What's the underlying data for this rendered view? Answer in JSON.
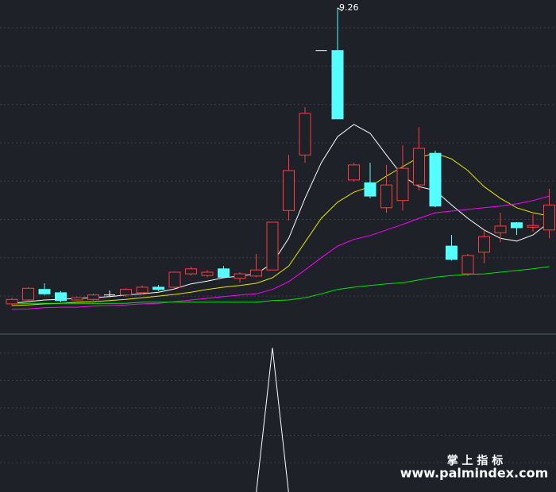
{
  "chart_data": [
    {
      "type": "candlestick",
      "ylim": [
        3.4,
        9.4
      ],
      "up_color": "#ff3b3b",
      "down_color": "#54ffff",
      "flat_color": "#ffffff",
      "open": [
        3.93,
        4.0,
        4.19,
        4.13,
        4.0,
        4.01,
        4.09,
        4.09,
        4.13,
        4.23,
        4.23,
        4.47,
        4.44,
        4.56,
        4.39,
        4.43,
        4.54,
        5.61,
        6.61,
        8.49,
        8.49,
        6.16,
        6.11,
        5.66,
        5.79,
        6.07,
        6.64,
        4.97,
        4.47,
        4.86,
        5.21,
        5.39,
        5.31,
        5.26
      ],
      "high": [
        4.04,
        4.23,
        4.3,
        4.16,
        4.06,
        4.11,
        4.17,
        4.21,
        4.26,
        4.27,
        4.51,
        4.6,
        4.54,
        4.61,
        4.5,
        4.83,
        5.4,
        6.61,
        7.47,
        8.49,
        9.26,
        6.47,
        6.47,
        6.43,
        6.79,
        7.11,
        6.69,
        5.17,
        4.83,
        5.26,
        5.57,
        5.4,
        5.54,
        6.0
      ],
      "low": [
        3.89,
        3.97,
        4.09,
        3.96,
        3.99,
        3.99,
        4.06,
        4.06,
        4.1,
        4.16,
        4.21,
        4.44,
        4.41,
        4.4,
        4.31,
        4.41,
        4.53,
        5.43,
        6.47,
        8.49,
        7.26,
        6.13,
        5.83,
        5.57,
        5.61,
        5.97,
        5.67,
        4.71,
        4.43,
        4.66,
        5.04,
        5.17,
        5.23,
        5.11
      ],
      "close": [
        4.01,
        4.21,
        4.11,
        3.99,
        4.04,
        4.09,
        4.09,
        4.19,
        4.23,
        4.19,
        4.5,
        4.56,
        4.5,
        4.41,
        4.47,
        4.54,
        5.4,
        6.33,
        7.36,
        8.49,
        7.26,
        6.43,
        5.87,
        6.07,
        6.37,
        6.73,
        5.69,
        4.73,
        4.8,
        5.14,
        5.33,
        5.3,
        5.34,
        5.71
      ],
      "moving_averages": [
        {
          "color": "#ffffff",
          "values": [
            3.94,
            3.97,
            4.0,
            4.01,
            4.03,
            4.04,
            4.06,
            4.09,
            4.11,
            4.14,
            4.2,
            4.29,
            4.34,
            4.4,
            4.43,
            4.47,
            4.66,
            5.11,
            5.83,
            6.47,
            6.94,
            7.16,
            7.0,
            6.61,
            6.23,
            6.04,
            5.97,
            5.71,
            5.47,
            5.26,
            5.11,
            5.06,
            5.17,
            5.4
          ]
        },
        {
          "color": "#e6e600",
          "values": [
            3.9,
            3.91,
            3.93,
            3.94,
            3.96,
            3.97,
            3.99,
            4.01,
            4.04,
            4.07,
            4.1,
            4.14,
            4.19,
            4.23,
            4.26,
            4.3,
            4.4,
            4.61,
            5.04,
            5.47,
            5.76,
            5.94,
            6.04,
            6.23,
            6.4,
            6.57,
            6.64,
            6.54,
            6.33,
            6.04,
            5.83,
            5.66,
            5.57,
            5.51
          ]
        },
        {
          "color": "#ff00ff",
          "values": [
            3.83,
            3.84,
            3.86,
            3.87,
            3.87,
            3.89,
            3.9,
            3.91,
            3.93,
            3.94,
            3.97,
            4.0,
            4.03,
            4.06,
            4.09,
            4.11,
            4.19,
            4.33,
            4.54,
            4.76,
            4.97,
            5.09,
            5.16,
            5.26,
            5.36,
            5.47,
            5.57,
            5.6,
            5.63,
            5.66,
            5.69,
            5.73,
            5.79,
            5.87
          ]
        },
        {
          "color": "#00e600",
          "values": [
            3.94,
            3.94,
            3.94,
            3.94,
            3.94,
            3.94,
            3.94,
            3.94,
            3.96,
            3.96,
            3.96,
            3.96,
            3.96,
            3.96,
            3.96,
            3.96,
            3.99,
            4.0,
            4.04,
            4.11,
            4.19,
            4.23,
            4.26,
            4.29,
            4.31,
            4.36,
            4.41,
            4.44,
            4.46,
            4.47,
            4.5,
            4.53,
            4.56,
            4.6
          ]
        }
      ]
    },
    {
      "type": "line",
      "ylim": [
        0,
        1.1
      ],
      "color": "#ffffff",
      "values": [
        0,
        0,
        0,
        0,
        0,
        0,
        0,
        0,
        0,
        0,
        0,
        0,
        0,
        0,
        0,
        0,
        1,
        0,
        0,
        0,
        0,
        0,
        0,
        0,
        0,
        0,
        0,
        0,
        0,
        0,
        0,
        0,
        0,
        0
      ]
    }
  ],
  "watermark": {
    "title": "掌 上 指 标",
    "url": "www.palmindex.com"
  }
}
